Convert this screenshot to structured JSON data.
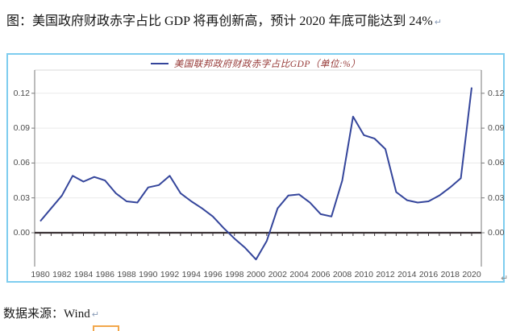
{
  "title": {
    "text": "图：美国政府财政赤字占比 GDP 将再创新高，预计 2020 年底可能达到 24%"
  },
  "source": {
    "text": "数据来源：Wind"
  },
  "marks": {
    "paragraph": "↵"
  },
  "colors": {
    "line": "#34459B",
    "box_border": "#7ECDEF",
    "legend_text": "#953735",
    "zero_axis": "#3A3134",
    "grid": "#EAEAEA",
    "plot_top": "#D9D9D9",
    "axis_border": "#7A7A7A",
    "tick_label": "#4D4D4D",
    "orange_box": "#F2A74B",
    "para_mark": "#8A9CB8"
  },
  "chart_data": {
    "type": "line",
    "title": "",
    "legend": "美国联邦政府财政赤字占比GDP（单位:%）",
    "legend_position": "top-center",
    "grid": true,
    "ylim": [
      -0.029,
      0.14
    ],
    "x": [
      1980,
      1981,
      1982,
      1983,
      1984,
      1985,
      1986,
      1987,
      1988,
      1989,
      1990,
      1991,
      1992,
      1993,
      1994,
      1995,
      1996,
      1997,
      1998,
      1999,
      2000,
      2001,
      2002,
      2003,
      2004,
      2005,
      2006,
      2007,
      2008,
      2009,
      2010,
      2011,
      2012,
      2013,
      2014,
      2015,
      2016,
      2017,
      2018,
      2019,
      2020
    ],
    "series": [
      {
        "name": "美国联邦政府财政赤字占比GDP",
        "values": [
          0.01,
          0.021,
          0.032,
          0.049,
          0.044,
          0.048,
          0.045,
          0.034,
          0.027,
          0.026,
          0.039,
          0.041,
          0.049,
          0.034,
          0.027,
          0.021,
          0.014,
          0.004,
          -0.005,
          -0.013,
          -0.023,
          -0.007,
          0.021,
          0.032,
          0.033,
          0.026,
          0.016,
          0.014,
          0.045,
          0.1,
          0.084,
          0.081,
          0.072,
          0.035,
          0.028,
          0.026,
          0.027,
          0.032,
          0.039,
          0.047,
          0.125
        ]
      }
    ],
    "x_tick_labels": [
      "1980",
      "1982",
      "1984",
      "1986",
      "1988",
      "1990",
      "1992",
      "1994",
      "1996",
      "1998",
      "2000",
      "2002",
      "2004",
      "2006",
      "2008",
      "2010",
      "2012",
      "2014",
      "2016",
      "2018",
      "2020"
    ],
    "y_ticks": [
      {
        "label": "0.12",
        "value": 0.12
      },
      {
        "label": "0.09",
        "value": 0.09
      },
      {
        "label": "0.06",
        "value": 0.06
      },
      {
        "label": "0.03",
        "value": 0.03
      },
      {
        "label": "0.00",
        "value": 0.0
      }
    ]
  }
}
